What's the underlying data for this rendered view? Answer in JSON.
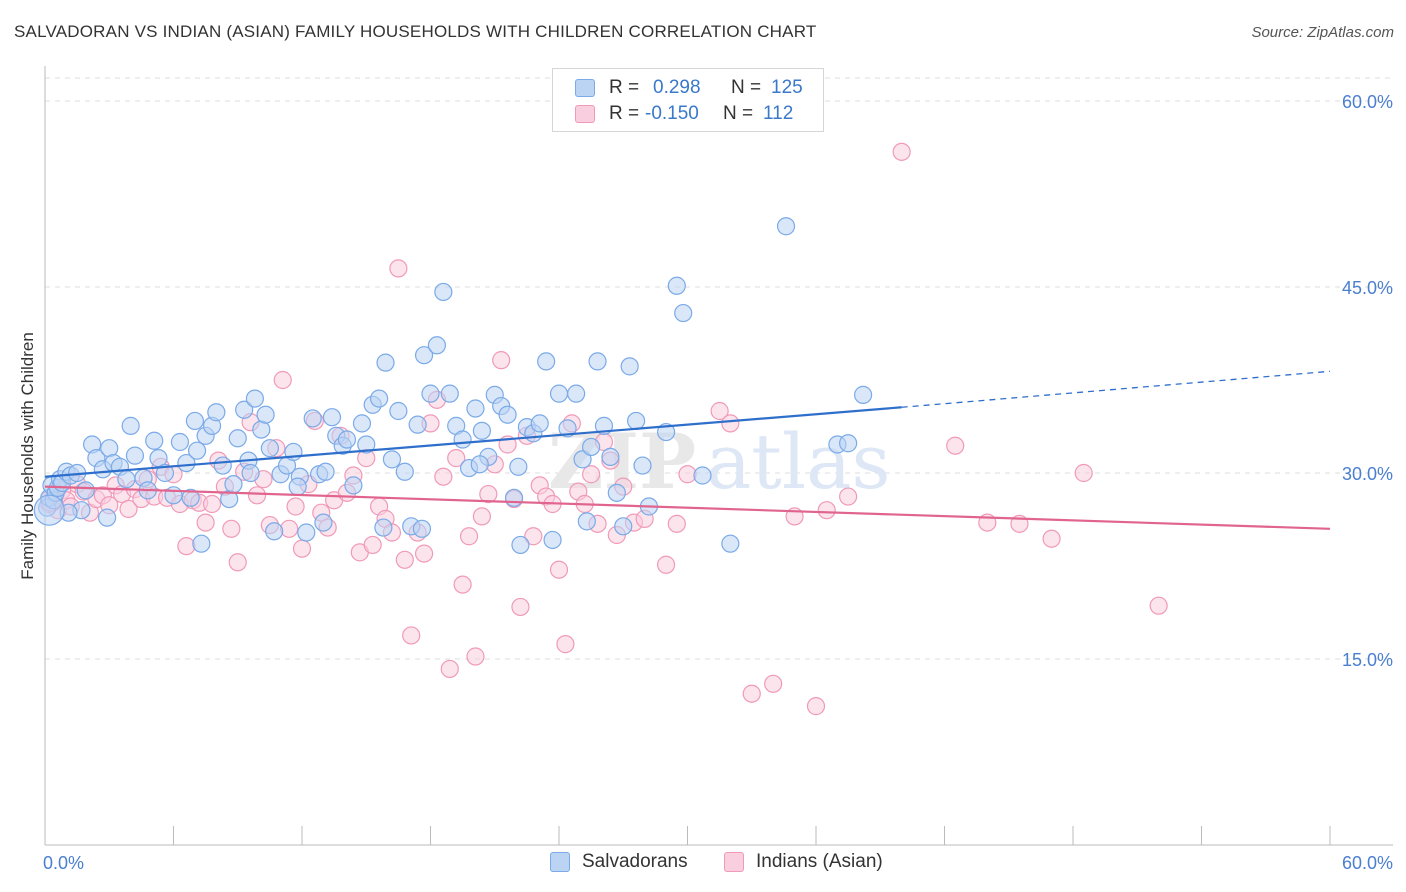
{
  "title": "SALVADORAN VS INDIAN (ASIAN) FAMILY HOUSEHOLDS WITH CHILDREN CORRELATION CHART",
  "source": "Source: ZipAtlas.com",
  "watermark": {
    "zip": "ZIP",
    "atlas": "atlas"
  },
  "legend": {
    "rows": [
      {
        "r_label": "R =",
        "r_value": "0.298",
        "n_label": "N =",
        "n_value": "125",
        "color": "#7aaae8",
        "fill": "#bcd4f4"
      },
      {
        "r_label": "R =",
        "r_value": "-0.150",
        "n_label": "N =",
        "n_value": "112",
        "color": "#f09ab8",
        "fill": "#f9cede"
      }
    ]
  },
  "bottom_legend": [
    {
      "label": "Salvadorans",
      "color": "#7aaae8",
      "fill": "#bcd4f4"
    },
    {
      "label": "Indians (Asian)",
      "color": "#f09ab8",
      "fill": "#f9cede"
    }
  ],
  "chart_data": {
    "type": "scatter",
    "title": "SALVADORAN VS INDIAN (ASIAN) FAMILY HOUSEHOLDS WITH CHILDREN CORRELATION CHART",
    "xlabel": "",
    "ylabel": "Family Households with Children",
    "xlim": [
      0,
      60
    ],
    "ylim": [
      0,
      62.5
    ],
    "x_tick_labels": {
      "left": "0.0%",
      "right": "60.0%"
    },
    "y_ticks": [
      {
        "value": 15,
        "label": "15.0%"
      },
      {
        "value": 30,
        "label": "30.0%"
      },
      {
        "value": 45,
        "label": "45.0%"
      },
      {
        "value": 60,
        "label": "60.0%"
      }
    ],
    "grid": true,
    "series": [
      {
        "name": "Salvadorans",
        "color": "#7aaae8",
        "fill": "#bcd4f4",
        "line_color": "#2f6fcc",
        "trend": {
          "x0": 0,
          "y0": 29.7,
          "x1": 40,
          "y1": 35.3,
          "dash_to_x": 60,
          "dash_to_y": 38.2
        },
        "points": [
          [
            0.1,
            27.2
          ],
          [
            0.2,
            28.0
          ],
          [
            0.3,
            29.0
          ],
          [
            0.4,
            27.8
          ],
          [
            0.5,
            28.4
          ],
          [
            0.6,
            28.8
          ],
          [
            0.7,
            29.5
          ],
          [
            0.8,
            29.2
          ],
          [
            1.0,
            30.1
          ],
          [
            1.2,
            29.8
          ],
          [
            1.5,
            30.0
          ],
          [
            1.7,
            27.0
          ],
          [
            1.9,
            28.6
          ],
          [
            2.2,
            32.3
          ],
          [
            2.4,
            31.2
          ],
          [
            2.7,
            30.3
          ],
          [
            3.0,
            32.0
          ],
          [
            3.2,
            30.8
          ],
          [
            3.5,
            30.5
          ],
          [
            4.0,
            33.8
          ],
          [
            4.2,
            31.4
          ],
          [
            4.6,
            29.6
          ],
          [
            4.8,
            28.6
          ],
          [
            5.1,
            32.6
          ],
          [
            5.3,
            31.2
          ],
          [
            5.6,
            30.0
          ],
          [
            6.0,
            28.2
          ],
          [
            6.3,
            32.5
          ],
          [
            6.6,
            30.8
          ],
          [
            7.0,
            34.2
          ],
          [
            7.1,
            31.8
          ],
          [
            7.3,
            24.3
          ],
          [
            7.5,
            33.0
          ],
          [
            7.8,
            33.8
          ],
          [
            8.0,
            34.9
          ],
          [
            8.3,
            30.6
          ],
          [
            8.6,
            27.9
          ],
          [
            8.8,
            29.1
          ],
          [
            9.0,
            32.8
          ],
          [
            9.3,
            35.1
          ],
          [
            9.5,
            31.0
          ],
          [
            9.8,
            36.0
          ],
          [
            10.1,
            33.5
          ],
          [
            10.3,
            34.7
          ],
          [
            10.5,
            32.0
          ],
          [
            10.7,
            25.3
          ],
          [
            11.0,
            29.9
          ],
          [
            11.3,
            30.6
          ],
          [
            11.6,
            31.7
          ],
          [
            11.9,
            29.7
          ],
          [
            12.2,
            25.2
          ],
          [
            12.5,
            34.4
          ],
          [
            12.8,
            29.9
          ],
          [
            13.1,
            30.1
          ],
          [
            13.4,
            34.5
          ],
          [
            13.6,
            33.0
          ],
          [
            13.9,
            32.2
          ],
          [
            14.1,
            32.7
          ],
          [
            14.4,
            29.0
          ],
          [
            14.8,
            34.0
          ],
          [
            15.0,
            32.3
          ],
          [
            15.3,
            35.5
          ],
          [
            15.6,
            36.0
          ],
          [
            15.9,
            38.9
          ],
          [
            16.2,
            31.1
          ],
          [
            16.5,
            35.0
          ],
          [
            16.8,
            30.1
          ],
          [
            17.1,
            25.7
          ],
          [
            17.4,
            33.9
          ],
          [
            17.7,
            39.5
          ],
          [
            18.0,
            36.4
          ],
          [
            18.3,
            40.3
          ],
          [
            18.6,
            44.6
          ],
          [
            18.9,
            36.4
          ],
          [
            19.2,
            33.8
          ],
          [
            19.5,
            32.7
          ],
          [
            19.8,
            30.4
          ],
          [
            20.1,
            35.2
          ],
          [
            20.4,
            33.4
          ],
          [
            20.7,
            31.3
          ],
          [
            21.0,
            36.3
          ],
          [
            21.3,
            35.4
          ],
          [
            21.6,
            34.7
          ],
          [
            21.9,
            28.0
          ],
          [
            22.2,
            24.2
          ],
          [
            22.5,
            33.7
          ],
          [
            22.8,
            33.2
          ],
          [
            23.1,
            34.0
          ],
          [
            23.4,
            39.0
          ],
          [
            23.7,
            24.6
          ],
          [
            24.0,
            36.4
          ],
          [
            24.4,
            33.6
          ],
          [
            24.8,
            36.4
          ],
          [
            25.1,
            31.1
          ],
          [
            25.5,
            32.1
          ],
          [
            25.8,
            39.0
          ],
          [
            26.1,
            33.8
          ],
          [
            26.4,
            31.3
          ],
          [
            26.7,
            28.4
          ],
          [
            27.0,
            25.7
          ],
          [
            27.3,
            38.6
          ],
          [
            27.6,
            34.2
          ],
          [
            27.9,
            30.6
          ],
          [
            28.2,
            27.3
          ],
          [
            29.0,
            33.3
          ],
          [
            29.5,
            45.1
          ],
          [
            29.8,
            42.9
          ],
          [
            30.7,
            29.8
          ],
          [
            32.0,
            24.3
          ],
          [
            34.6,
            49.9
          ],
          [
            37.0,
            32.3
          ],
          [
            37.5,
            32.4
          ],
          [
            38.2,
            36.3
          ],
          [
            22.1,
            30.5
          ],
          [
            20.3,
            30.7
          ],
          [
            13.0,
            26.0
          ],
          [
            15.8,
            25.6
          ],
          [
            9.6,
            30.0
          ],
          [
            6.8,
            28.0
          ],
          [
            3.8,
            29.5
          ],
          [
            2.9,
            26.4
          ],
          [
            11.8,
            28.9
          ],
          [
            17.6,
            25.5
          ],
          [
            25.3,
            26.1
          ],
          [
            1.1,
            26.8
          ]
        ]
      },
      {
        "name": "Indians (Asian)",
        "color": "#f09ab8",
        "fill": "#f9cede",
        "line_color": "#e0648d",
        "trend": {
          "x0": 0,
          "y0": 28.9,
          "x1": 60,
          "y1": 25.5
        },
        "points": [
          [
            0.2,
            27.5
          ],
          [
            0.4,
            28.2
          ],
          [
            0.6,
            27.0
          ],
          [
            0.8,
            28.6
          ],
          [
            1.0,
            27.8
          ],
          [
            1.2,
            27.3
          ],
          [
            1.5,
            29.1
          ],
          [
            1.8,
            28.5
          ],
          [
            2.1,
            26.8
          ],
          [
            2.4,
            27.9
          ],
          [
            2.7,
            28.2
          ],
          [
            3.0,
            27.4
          ],
          [
            3.3,
            29.0
          ],
          [
            3.6,
            28.3
          ],
          [
            3.9,
            27.1
          ],
          [
            4.2,
            28.7
          ],
          [
            4.5,
            27.9
          ],
          [
            4.8,
            29.5
          ],
          [
            5.1,
            28.1
          ],
          [
            5.4,
            30.5
          ],
          [
            5.7,
            28.0
          ],
          [
            6.0,
            29.9
          ],
          [
            6.3,
            27.5
          ],
          [
            6.6,
            24.1
          ],
          [
            6.9,
            27.8
          ],
          [
            7.2,
            27.6
          ],
          [
            7.5,
            26.0
          ],
          [
            7.8,
            27.5
          ],
          [
            8.1,
            31.0
          ],
          [
            8.4,
            28.9
          ],
          [
            8.7,
            25.5
          ],
          [
            9.0,
            22.8
          ],
          [
            9.3,
            30.1
          ],
          [
            9.6,
            34.1
          ],
          [
            9.9,
            28.2
          ],
          [
            10.2,
            29.5
          ],
          [
            10.5,
            25.8
          ],
          [
            10.8,
            32.0
          ],
          [
            11.1,
            37.5
          ],
          [
            11.4,
            25.5
          ],
          [
            11.7,
            27.3
          ],
          [
            12.0,
            23.9
          ],
          [
            12.3,
            29.1
          ],
          [
            12.6,
            34.2
          ],
          [
            12.9,
            26.8
          ],
          [
            13.2,
            25.6
          ],
          [
            13.5,
            27.8
          ],
          [
            13.8,
            33.0
          ],
          [
            14.1,
            28.4
          ],
          [
            14.4,
            29.8
          ],
          [
            14.7,
            23.6
          ],
          [
            15.0,
            31.2
          ],
          [
            15.3,
            24.2
          ],
          [
            15.6,
            27.3
          ],
          [
            15.9,
            26.3
          ],
          [
            16.2,
            25.2
          ],
          [
            16.5,
            46.5
          ],
          [
            16.8,
            23.0
          ],
          [
            17.1,
            16.9
          ],
          [
            17.4,
            25.2
          ],
          [
            17.7,
            23.5
          ],
          [
            18.0,
            34.0
          ],
          [
            18.3,
            35.9
          ],
          [
            18.6,
            29.7
          ],
          [
            18.9,
            14.2
          ],
          [
            19.2,
            31.2
          ],
          [
            19.5,
            21.0
          ],
          [
            19.8,
            24.9
          ],
          [
            20.1,
            15.2
          ],
          [
            20.4,
            26.5
          ],
          [
            20.7,
            28.3
          ],
          [
            21.0,
            30.7
          ],
          [
            21.3,
            39.1
          ],
          [
            21.6,
            32.3
          ],
          [
            21.9,
            27.9
          ],
          [
            22.2,
            19.2
          ],
          [
            22.5,
            33.0
          ],
          [
            22.8,
            24.9
          ],
          [
            23.1,
            29.0
          ],
          [
            23.4,
            28.1
          ],
          [
            23.7,
            27.5
          ],
          [
            24.0,
            22.2
          ],
          [
            24.3,
            16.2
          ],
          [
            24.6,
            34.0
          ],
          [
            24.9,
            28.5
          ],
          [
            25.2,
            27.5
          ],
          [
            25.5,
            29.9
          ],
          [
            25.8,
            25.9
          ],
          [
            26.1,
            32.5
          ],
          [
            26.4,
            31.0
          ],
          [
            26.7,
            25.0
          ],
          [
            27.0,
            28.9
          ],
          [
            27.5,
            26.0
          ],
          [
            28.0,
            26.3
          ],
          [
            29.0,
            22.6
          ],
          [
            29.5,
            25.9
          ],
          [
            30.0,
            29.9
          ],
          [
            31.5,
            35.0
          ],
          [
            32.0,
            34.0
          ],
          [
            33.0,
            12.2
          ],
          [
            34.0,
            13.0
          ],
          [
            35.0,
            26.5
          ],
          [
            36.0,
            11.2
          ],
          [
            36.5,
            27.0
          ],
          [
            37.5,
            28.1
          ],
          [
            40.0,
            55.9
          ],
          [
            42.5,
            32.2
          ],
          [
            44.0,
            26.0
          ],
          [
            45.5,
            25.9
          ],
          [
            47.0,
            24.7
          ],
          [
            48.5,
            30.0
          ],
          [
            52.0,
            19.3
          ]
        ]
      }
    ]
  }
}
